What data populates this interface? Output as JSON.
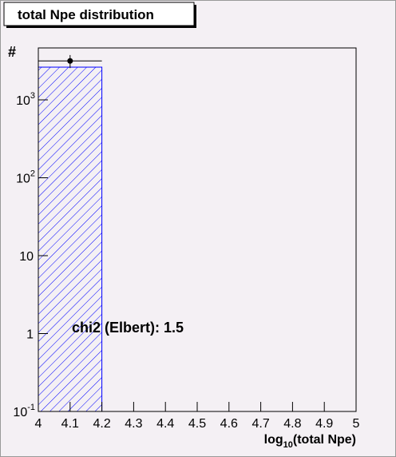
{
  "chart_data": {
    "type": "histogram",
    "title": "total Npe distribution",
    "x_label": [
      "log",
      "10",
      "(total Npe)"
    ],
    "y_label": "#",
    "annotation": "chi2 (Elbert): 1.5",
    "bins": [
      4,
      4.2,
      4.4,
      4.6,
      4.8,
      5
    ],
    "series": [
      {
        "color": "#0000ff",
        "values": [
          2630,
          0,
          0,
          0,
          0
        ]
      }
    ],
    "points": {
      "x": [
        4.1
      ],
      "y": [
        3160
      ],
      "xerr": [
        0.1
      ],
      "yerr": [
        600
      ],
      "color": "#000000"
    },
    "xlim": [
      4,
      5
    ],
    "xticks": [
      4,
      4.1,
      4.2,
      4.3,
      4.4,
      4.5,
      4.6,
      4.7,
      4.8,
      4.9,
      5
    ],
    "ylim": [
      0.1,
      4640
    ],
    "yticks": [
      {
        "value": 0.1,
        "label": "10",
        "exponent": "-1"
      },
      1,
      10,
      {
        "value": 100,
        "label": "10",
        "exponent": "2"
      },
      {
        "value": 1000,
        "label": "10",
        "exponent": "3"
      }
    ],
    "log_y": true,
    "grid": false
  }
}
